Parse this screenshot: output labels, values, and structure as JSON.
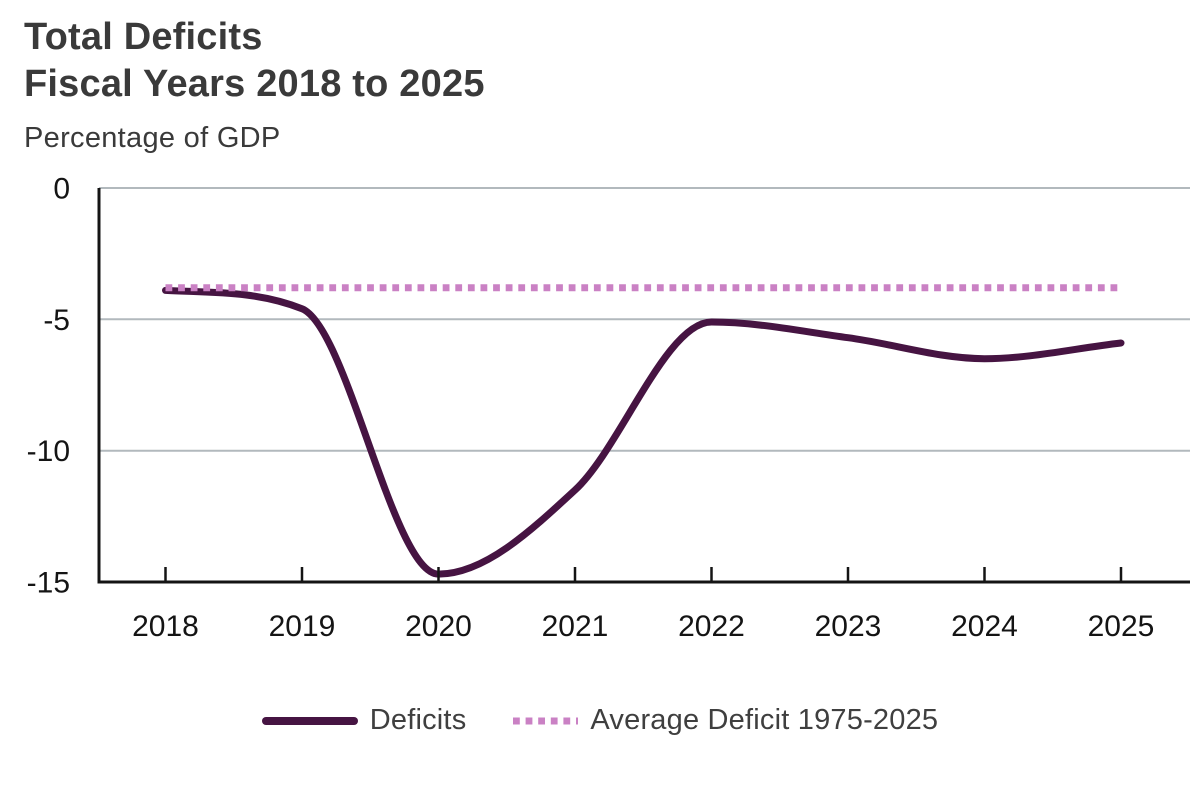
{
  "header": {
    "title_line1": "Total Deficits",
    "title_line2": "Fiscal Years 2018 to 2025",
    "subtitle": "Percentage of GDP"
  },
  "legend": {
    "items": [
      {
        "label": "Deficits",
        "style": "solid",
        "color": "#461442"
      },
      {
        "label": "Average Deficit 1975-2025",
        "style": "dotted",
        "color": "#ca81c4"
      }
    ]
  },
  "colors": {
    "deficits_line": "#461442",
    "average_line": "#ca81c4",
    "gridline": "#b2b9bd",
    "axis": "#141414",
    "tick_label": "#141414",
    "heading_text": "#3a3a3a",
    "legend_text": "#3f3f3f"
  },
  "chart_data": {
    "type": "line",
    "title": "Total Deficits Fiscal Years 2018 to 2025",
    "ylabel": "Percentage of GDP",
    "xlabel": "",
    "x": [
      2018,
      2019,
      2020,
      2021,
      2022,
      2023,
      2024,
      2025
    ],
    "ylim": [
      -15,
      0
    ],
    "yticks": [
      0,
      -5,
      -10,
      -15
    ],
    "gridlines_at": [
      0,
      -5,
      -10
    ],
    "grid": true,
    "legend_position": "bottom",
    "series": [
      {
        "name": "Deficits",
        "style": "solid",
        "smooth": true,
        "color": "#461442",
        "values": [
          -3.9,
          -4.6,
          -14.7,
          -11.5,
          -5.1,
          -5.7,
          -6.5,
          -5.9
        ]
      },
      {
        "name": "Average Deficit 1975-2025",
        "style": "dotted",
        "smooth": false,
        "color": "#ca81c4",
        "constant": -3.8,
        "values": [
          -3.8,
          -3.8,
          -3.8,
          -3.8,
          -3.8,
          -3.8,
          -3.8,
          -3.8
        ]
      }
    ]
  }
}
